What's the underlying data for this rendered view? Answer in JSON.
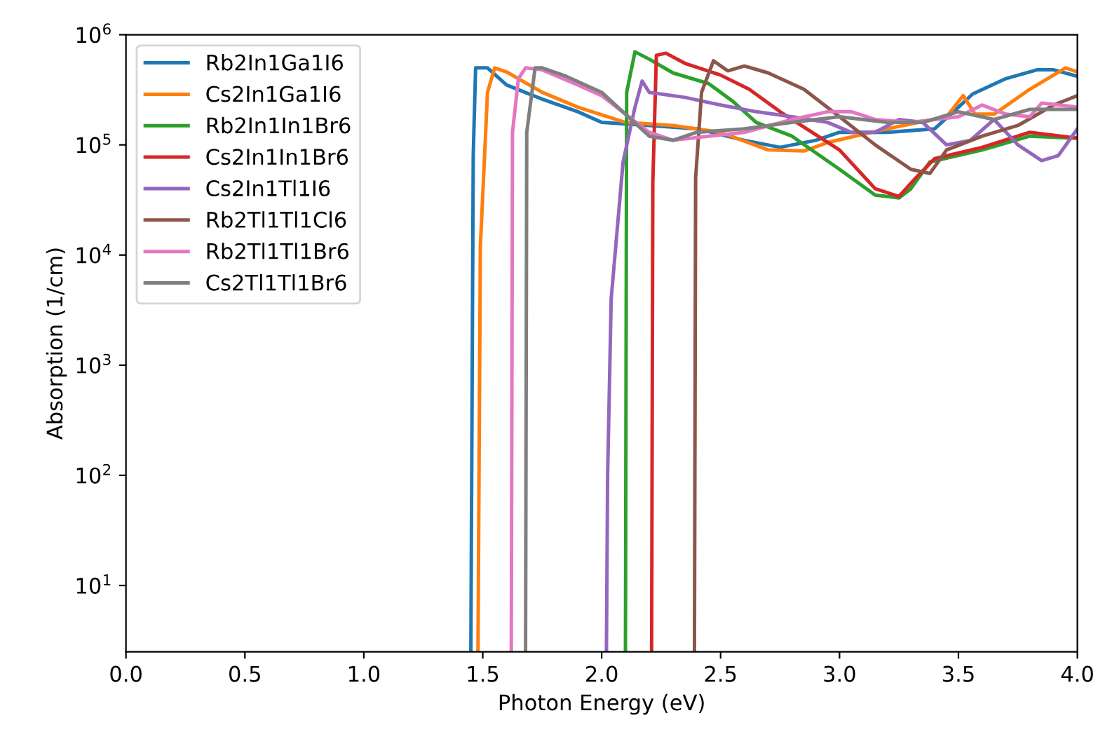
{
  "chart_data": {
    "type": "line",
    "xlabel": "Photon Energy (eV)",
    "ylabel": "Absorption (1/cm)",
    "log": "y",
    "legend": "top left",
    "grid": false,
    "xlim": [
      0.0,
      4.0
    ],
    "xticks": [
      {
        "value": 0,
        "label": "0.0"
      },
      {
        "value": 0.5,
        "label": "0.5"
      },
      {
        "value": 1,
        "label": "1.0"
      },
      {
        "value": 1.5,
        "label": "1.5"
      },
      {
        "value": 2,
        "label": "2.0"
      },
      {
        "value": 2.5,
        "label": "2.5"
      },
      {
        "value": 3,
        "label": "3.0"
      },
      {
        "value": 3.5,
        "label": "3.5"
      },
      {
        "value": 4,
        "label": "4.0"
      }
    ],
    "ylim": [
      2.5,
      1000000
    ],
    "yticks": [
      {
        "value": 10,
        "label": "10$^{1}$"
      },
      {
        "value": 100,
        "label": "10$^{2}$"
      },
      {
        "value": 1000,
        "label": "10$^{3}$"
      },
      {
        "value": 10000,
        "label": "10$^{4}$"
      },
      {
        "value": 100000,
        "label": "10$^{5}$"
      },
      {
        "value": 1000000,
        "label": "10$^{6}$"
      }
    ],
    "series": [
      {
        "name": "Rb2In1Ga1I6",
        "color": "#1f77b4",
        "x": [
          1.45,
          1.46,
          1.47,
          1.52,
          1.6,
          1.75,
          1.9,
          2.0,
          2.2,
          2.4,
          2.6,
          2.75,
          2.9,
          3.0,
          3.2,
          3.4,
          3.5,
          3.56,
          3.7,
          3.83,
          3.9,
          4.0
        ],
        "values": [
          2.5,
          80000,
          500000,
          500000,
          350000,
          260000,
          200000,
          160000,
          150000,
          140000,
          110000,
          95000,
          110000,
          130000,
          130000,
          140000,
          220000,
          290000,
          400000,
          480000,
          480000,
          420000
        ]
      },
      {
        "name": "Cs2In1Ga1I6",
        "color": "#ff7f0e",
        "x": [
          1.48,
          1.49,
          1.52,
          1.55,
          1.6,
          1.75,
          1.9,
          2.1,
          2.3,
          2.5,
          2.7,
          2.85,
          2.95,
          3.2,
          3.45,
          3.52,
          3.57,
          3.65,
          3.8,
          3.95,
          4.0
        ],
        "values": [
          2.5,
          12000,
          300000,
          500000,
          460000,
          300000,
          220000,
          160000,
          150000,
          130000,
          90000,
          88000,
          105000,
          140000,
          180000,
          280000,
          190000,
          190000,
          320000,
          500000,
          460000
        ]
      },
      {
        "name": "Rb2In1In1Br6",
        "color": "#2ca02c",
        "x": [
          2.1,
          2.105,
          2.14,
          2.2,
          2.3,
          2.45,
          2.55,
          2.65,
          2.8,
          3.0,
          3.15,
          3.25,
          3.3,
          3.38,
          3.6,
          3.8,
          4.0
        ],
        "values": [
          2.5,
          300000,
          700000,
          600000,
          450000,
          360000,
          250000,
          160000,
          120000,
          60000,
          35000,
          33000,
          40000,
          70000,
          90000,
          120000,
          115000
        ]
      },
      {
        "name": "Cs2In1In1Br6",
        "color": "#d62728",
        "x": [
          2.21,
          2.215,
          2.23,
          2.27,
          2.35,
          2.5,
          2.62,
          2.75,
          3.0,
          3.15,
          3.25,
          3.32,
          3.4,
          3.6,
          3.8,
          4.0
        ],
        "values": [
          2.5,
          45000,
          650000,
          680000,
          550000,
          430000,
          320000,
          200000,
          90000,
          40000,
          34000,
          50000,
          75000,
          95000,
          130000,
          115000
        ]
      },
      {
        "name": "Cs2In1Tl1I6",
        "color": "#9467bd",
        "x": [
          2.02,
          2.025,
          2.04,
          2.09,
          2.14,
          2.17,
          2.2,
          2.35,
          2.5,
          2.65,
          2.8,
          2.95,
          3.05,
          3.15,
          3.25,
          3.35,
          3.45,
          3.55,
          3.65,
          3.75,
          3.85,
          3.92,
          4.0
        ],
        "values": [
          2.5,
          100,
          4000,
          70000,
          220000,
          380000,
          300000,
          270000,
          230000,
          200000,
          180000,
          160000,
          130000,
          130000,
          170000,
          160000,
          100000,
          110000,
          170000,
          100000,
          72000,
          80000,
          140000
        ]
      },
      {
        "name": "Rb2Tl1Tl1Cl6",
        "color": "#8c564b",
        "x": [
          2.39,
          2.395,
          2.42,
          2.47,
          2.53,
          2.6,
          2.7,
          2.85,
          3.0,
          3.15,
          3.3,
          3.38,
          3.45,
          3.6,
          3.75,
          3.9,
          4.0
        ],
        "values": [
          2.5,
          50000,
          300000,
          580000,
          470000,
          520000,
          450000,
          320000,
          180000,
          100000,
          60000,
          55000,
          90000,
          120000,
          150000,
          230000,
          280000
        ]
      },
      {
        "name": "Rb2Tl1Tl1Br6",
        "color": "#e377c2",
        "x": [
          1.62,
          1.625,
          1.65,
          1.68,
          1.75,
          1.9,
          2.0,
          2.1,
          2.2,
          2.3,
          2.45,
          2.6,
          2.8,
          2.95,
          3.05,
          3.15,
          3.3,
          3.5,
          3.6,
          3.7,
          3.8,
          3.85,
          4.0
        ],
        "values": [
          2.5,
          130000,
          400000,
          500000,
          480000,
          350000,
          280000,
          190000,
          130000,
          110000,
          120000,
          130000,
          170000,
          200000,
          200000,
          170000,
          160000,
          180000,
          230000,
          190000,
          180000,
          240000,
          220000
        ]
      },
      {
        "name": "Cs2Tl1Tl1Br6",
        "color": "#7f7f7f",
        "x": [
          1.68,
          1.685,
          1.72,
          1.75,
          1.85,
          2.0,
          2.1,
          2.2,
          2.3,
          2.4,
          2.6,
          2.8,
          3.0,
          3.2,
          3.35,
          3.5,
          3.65,
          3.8,
          4.0
        ],
        "values": [
          2.5,
          130000,
          500000,
          500000,
          420000,
          300000,
          190000,
          120000,
          110000,
          130000,
          140000,
          160000,
          180000,
          160000,
          160000,
          200000,
          170000,
          210000,
          210000
        ]
      }
    ]
  }
}
